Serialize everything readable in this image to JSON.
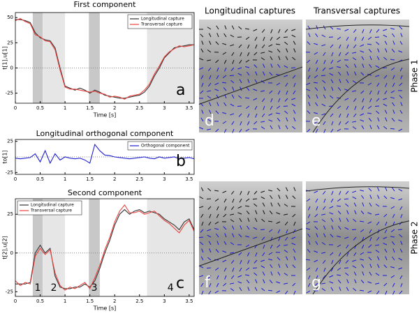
{
  "chart_data": [
    {
      "type": "line",
      "title": "First component",
      "xlabel": "Time [s]",
      "ylabel": "t[1],u[1]",
      "panel_label": "a",
      "x": [
        0,
        0.1,
        0.2,
        0.3,
        0.4,
        0.5,
        0.6,
        0.7,
        0.8,
        0.9,
        1.0,
        1.1,
        1.2,
        1.3,
        1.4,
        1.5,
        1.6,
        1.7,
        1.8,
        1.9,
        2.0,
        2.1,
        2.2,
        2.3,
        2.4,
        2.5,
        2.6,
        2.7,
        2.8,
        2.9,
        3.0,
        3.1,
        3.2,
        3.3,
        3.4,
        3.5,
        3.6
      ],
      "series": [
        {
          "name": "Longitudinal capture",
          "color": "#333333",
          "values": [
            48,
            48,
            47,
            45,
            35,
            30,
            28,
            27,
            20,
            0,
            -18,
            -20,
            -22,
            -20,
            -22,
            -25,
            -22,
            -24,
            -27,
            -28,
            -29,
            -30,
            -30,
            -29,
            -28,
            -27,
            -24,
            -18,
            -8,
            0,
            10,
            15,
            20,
            21,
            22,
            23,
            23
          ]
        },
        {
          "name": "Transversal capture",
          "color": "#e8413c",
          "values": [
            47,
            49,
            46,
            44,
            33,
            31,
            27,
            26,
            18,
            -2,
            -19,
            -21,
            -21,
            -22,
            -23,
            -24,
            -23,
            -25,
            -26,
            -29,
            -28,
            -29,
            -31,
            -28,
            -27,
            -26,
            -22,
            -16,
            -6,
            2,
            11,
            16,
            19,
            22,
            21,
            22,
            23
          ]
        }
      ],
      "regions": [
        {
          "x": [
            0.35,
            0.55
          ],
          "color": "#c8c8c8"
        },
        {
          "x": [
            0.55,
            1.0
          ],
          "color": "#e6e6e6"
        },
        {
          "x": [
            1.48,
            1.7
          ],
          "color": "#c8c8c8"
        },
        {
          "x": [
            2.65,
            3.6
          ],
          "color": "#e6e6e6"
        }
      ],
      "xlim": [
        0,
        3.6
      ],
      "ylim": [
        -35,
        55
      ],
      "xticks": [
        0,
        0.5,
        1,
        1.5,
        2,
        2.5,
        3,
        3.5
      ],
      "yticks": [
        50,
        25,
        0,
        -25
      ],
      "legend": "upper right"
    },
    {
      "type": "line",
      "title": "Longitudinal orthogonal component",
      "xlabel": null,
      "ylabel": "to[1]",
      "panel_label": "b",
      "x": [
        0,
        0.1,
        0.2,
        0.3,
        0.4,
        0.5,
        0.6,
        0.7,
        0.8,
        0.9,
        1.0,
        1.1,
        1.2,
        1.3,
        1.4,
        1.5,
        1.6,
        1.7,
        1.8,
        1.9,
        2.0,
        2.1,
        2.2,
        2.3,
        2.4,
        2.5,
        2.6,
        2.7,
        2.8,
        2.9,
        3.0,
        3.1,
        3.2,
        3.3,
        3.4,
        3.5,
        3.6
      ],
      "series": [
        {
          "name": "Orthogonal component",
          "color": "#1f1fd0",
          "values": [
            -2,
            -3,
            -2,
            -1,
            5,
            -8,
            10,
            -10,
            5,
            -5,
            0,
            -2,
            -3,
            -2,
            -5,
            -10,
            20,
            10,
            3,
            2,
            0,
            -1,
            -2,
            -3,
            -2,
            -1,
            0,
            -2,
            -3,
            0,
            -2,
            -1,
            0,
            -3,
            -2,
            -1,
            -3
          ]
        }
      ],
      "regions": [],
      "xlim": [
        0,
        3.6
      ],
      "ylim": [
        -28,
        28
      ],
      "xticks": [
        0,
        0.5,
        1,
        1.5,
        2,
        2.5,
        3,
        3.5
      ],
      "yticks": [
        25,
        -25
      ],
      "legend": "upper right"
    },
    {
      "type": "line",
      "title": "Second component",
      "xlabel": "Time [s]",
      "ylabel": "t[2],u[2]",
      "panel_label": "c",
      "x": [
        0,
        0.1,
        0.2,
        0.3,
        0.4,
        0.5,
        0.6,
        0.7,
        0.8,
        0.9,
        1.0,
        1.1,
        1.2,
        1.3,
        1.4,
        1.5,
        1.6,
        1.7,
        1.8,
        1.9,
        2.0,
        2.1,
        2.2,
        2.3,
        2.4,
        2.5,
        2.6,
        2.7,
        2.8,
        2.9,
        3.0,
        3.1,
        3.2,
        3.3,
        3.4,
        3.5,
        3.6
      ],
      "series": [
        {
          "name": "Longitudinal capture",
          "color": "#333333",
          "values": [
            -20,
            -20,
            -20,
            -19,
            0,
            5,
            0,
            3,
            -15,
            -22,
            -23,
            -23,
            -22,
            -22,
            -20,
            -22,
            -18,
            -10,
            0,
            8,
            18,
            25,
            28,
            25,
            27,
            28,
            26,
            27,
            26,
            25,
            22,
            20,
            18,
            15,
            20,
            22,
            15
          ]
        },
        {
          "name": "Transversal capture",
          "color": "#e8413c",
          "values": [
            -18,
            -21,
            -19,
            -20,
            -2,
            3,
            -1,
            2,
            -13,
            -21,
            -24,
            -22,
            -23,
            -21,
            -19,
            -23,
            -16,
            -8,
            2,
            10,
            20,
            27,
            31,
            26,
            26,
            27,
            25,
            26,
            27,
            24,
            21,
            19,
            16,
            13,
            18,
            21,
            14
          ]
        }
      ],
      "regions": [
        {
          "x": [
            0.35,
            0.55
          ],
          "color": "#c8c8c8"
        },
        {
          "x": [
            0.55,
            1.0
          ],
          "color": "#e6e6e6"
        },
        {
          "x": [
            1.48,
            1.7
          ],
          "color": "#c8c8c8"
        },
        {
          "x": [
            2.65,
            3.6
          ],
          "color": "#e6e6e6"
        }
      ],
      "region_labels": [
        "1",
        "2",
        "3",
        "4"
      ],
      "xlim": [
        0,
        3.6
      ],
      "ylim": [
        -28,
        35
      ],
      "xticks": [
        0,
        0.5,
        1,
        1.5,
        2,
        2.5,
        3,
        3.5
      ],
      "yticks": [
        25,
        0,
        -25
      ],
      "legend": "upper left"
    }
  ],
  "panels": {
    "columns": [
      "Longitudinal captures",
      "Transversal captures"
    ],
    "rows": [
      "Phase 1",
      "Phase 2"
    ],
    "labels": [
      "d",
      "e",
      "f",
      "g"
    ]
  }
}
